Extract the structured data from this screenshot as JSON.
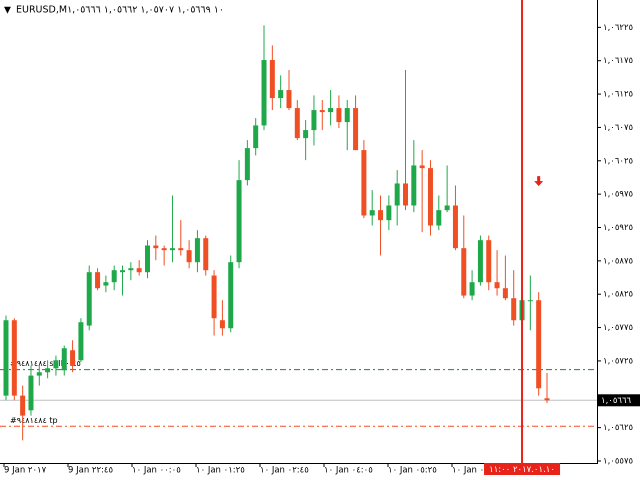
{
  "chart_data": {
    "type": "candlestick",
    "title": "EURUSD,M١٠ ١,٠٥٦٦٩ ١,٠٥٧٠٧ ١,٠٥٦٦٢ ١,٠٥٦٦٦",
    "colors": {
      "up": "#1fa84a",
      "down": "#f04e23"
    },
    "open": [
      1.05673,
      1.05786,
      1.05673,
      1.05651,
      1.05703,
      1.05708,
      1.05714,
      1.05711,
      1.05741,
      1.05726,
      1.05778,
      1.05858,
      1.05838,
      1.05843,
      1.05858,
      1.05861,
      1.05864,
      1.05858,
      1.05898,
      1.05894,
      1.05891,
      1.05894,
      1.05891,
      1.05873,
      1.05909,
      1.05853,
      1.05786,
      1.05774,
      1.05873,
      1.05996,
      1.06044,
      1.06078,
      1.06176,
      1.06119,
      1.06131,
      1.06104,
      1.06059,
      1.06071,
      1.06101,
      1.06098,
      1.06104,
      1.06083,
      1.06104,
      1.06041,
      1.05943,
      1.05951,
      1.05936,
      1.05958,
      1.05991,
      1.05958,
      1.06018,
      1.06014,
      1.05928,
      1.05951,
      1.05958,
      1.05894,
      1.05823,
      1.05843,
      1.05906,
      1.05843,
      1.05834,
      1.05819,
      1.05786,
      1.05816,
      1.05816,
      1.05669
    ],
    "high": [
      1.05793,
      1.05789,
      1.05688,
      1.05718,
      1.05718,
      1.05726,
      1.05733,
      1.05748,
      1.05756,
      1.05789,
      1.05868,
      1.05864,
      1.05853,
      1.05868,
      1.05868,
      1.05873,
      1.05876,
      1.05906,
      1.05913,
      1.05898,
      1.05973,
      1.05936,
      1.05906,
      1.05921,
      1.05913,
      1.05861,
      1.05816,
      1.05883,
      1.06026,
      1.06056,
      1.06089,
      1.06228,
      1.06198,
      1.06153,
      1.06161,
      1.06116,
      1.06086,
      1.06123,
      1.06116,
      1.06131,
      1.06123,
      1.06116,
      1.06123,
      1.06056,
      1.05981,
      1.05973,
      1.05973,
      1.06011,
      1.06161,
      1.06056,
      1.06041,
      1.06026,
      1.05973,
      1.06018,
      1.05988,
      1.05943,
      1.05861,
      1.05913,
      1.05913,
      1.05891,
      1.05883,
      1.05861,
      1.05849,
      1.05853,
      1.05828,
      1.05707
    ],
    "low": [
      1.05666,
      1.05666,
      1.05606,
      1.05643,
      1.05688,
      1.05699,
      1.05703,
      1.05703,
      1.05708,
      1.05723,
      1.05771,
      1.05831,
      1.05828,
      1.05831,
      1.05823,
      1.05846,
      1.05853,
      1.05849,
      1.05876,
      1.05868,
      1.05873,
      1.05883,
      1.05864,
      1.05858,
      1.05853,
      1.05763,
      1.05763,
      1.05768,
      1.05864,
      1.05988,
      1.06033,
      1.06071,
      1.06101,
      1.06104,
      1.06101,
      1.06056,
      1.06026,
      1.06048,
      1.06071,
      1.06078,
      1.06074,
      1.06041,
      1.06041,
      1.05939,
      1.05928,
      1.05883,
      1.05921,
      1.05928,
      1.05951,
      1.05948,
      1.05918,
      1.05913,
      1.05921,
      1.05948,
      1.05891,
      1.05819,
      1.05816,
      1.05838,
      1.05831,
      1.05823,
      1.05816,
      1.05778,
      1.05778,
      1.05771,
      1.05673,
      1.05662
    ],
    "close": [
      1.05786,
      1.05673,
      1.05643,
      1.05703,
      1.05708,
      1.05714,
      1.05726,
      1.05744,
      1.05718,
      1.05783,
      1.05858,
      1.05834,
      1.05843,
      1.05861,
      1.05861,
      1.05864,
      1.05858,
      1.05898,
      1.05894,
      1.05891,
      1.05894,
      1.05891,
      1.05873,
      1.05909,
      1.05861,
      1.05789,
      1.05774,
      1.05873,
      1.05996,
      1.06044,
      1.06078,
      1.06176,
      1.06119,
      1.06131,
      1.06104,
      1.06059,
      1.06071,
      1.06101,
      1.06098,
      1.06104,
      1.06083,
      1.06104,
      1.06041,
      1.05943,
      1.05951,
      1.05936,
      1.05958,
      1.05991,
      1.05958,
      1.06018,
      1.06014,
      1.05928,
      1.05951,
      1.05958,
      1.05894,
      1.05823,
      1.05843,
      1.05906,
      1.05843,
      1.05834,
      1.05819,
      1.05786,
      1.05816,
      1.05816,
      1.05684,
      1.05666
    ],
    "ylim": [
      1.05572,
      1.06266
    ],
    "yticks": [
      {
        "value": 1.06225,
        "label": "١,٠٦٢٢٥"
      },
      {
        "value": 1.06175,
        "label": "١,٠٦١٧٥"
      },
      {
        "value": 1.06125,
        "label": "١,٠٦١٢٥"
      },
      {
        "value": 1.06075,
        "label": "١,٠٦٠٧٥"
      },
      {
        "value": 1.06025,
        "label": "١,٠٦٠٢٥"
      },
      {
        "value": 1.05975,
        "label": "١,٠٥٩٧٥"
      },
      {
        "value": 1.05925,
        "label": "١,٠٥٩٢٥"
      },
      {
        "value": 1.05875,
        "label": "١,٠٥٨٧٥"
      },
      {
        "value": 1.05825,
        "label": "١,٠٥٨٢٥"
      },
      {
        "value": 1.05775,
        "label": "١,٠٥٧٧٥"
      },
      {
        "value": 1.05725,
        "label": "١,٠٥٧٢٥"
      },
      {
        "value": 1.05625,
        "label": "١,٠٥٦٢٥"
      },
      {
        "value": 1.05575,
        "label": "١,٠٥٥٧٥"
      }
    ],
    "xticks": [
      "9 Jan ٢٠١٧",
      "9 Jan ٢٢:٤٥",
      "١٠ Jan ٠٠:٠٥",
      "١٠ Jan ٠١:٢٥",
      "١٠ Jan ٠٢:٤٥",
      "١٠ Jan ٠٤:٠٥",
      "١٠ Jan ٠٥:٢٥",
      "١٠ Jan ٠٦:٤٥"
    ],
    "bid": {
      "value": 1.05666,
      "label": "١,٠٥٦٦٦"
    },
    "levels": [
      {
        "label": "#٩٤٨١٤٨٤ sell ٠.٤٥",
        "value": 1.05712,
        "color": "#2e7d32"
      },
      {
        "label": "#٩٤٨١٤٨٤ tp",
        "value": 1.05627,
        "color": "#f04e23"
      }
    ],
    "cursor": {
      "index": 62,
      "label": "٢٠١٧.٠١.١٠ ١١:٠٠",
      "color": "#e8231a"
    },
    "arrow": {
      "index": 64,
      "value": 1.05993,
      "color": "#e8231a"
    }
  }
}
